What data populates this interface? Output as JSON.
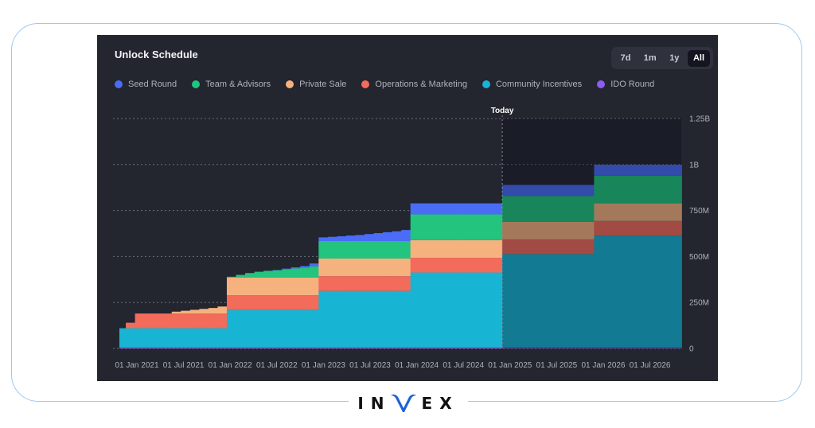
{
  "panel": {
    "title": "Unlock Schedule",
    "ranges": [
      "7d",
      "1m",
      "1y",
      "All"
    ],
    "active_range": "All"
  },
  "brand": {
    "logo_text": "INVEX"
  },
  "chart_data": {
    "type": "area",
    "subtype": "stacked-step",
    "title": "Unlock Schedule",
    "xlabel": "",
    "ylabel": "",
    "x_ticks": [
      "01 Jan 2021",
      "01 Jul 2021",
      "01 Jan 2022",
      "01 Jul 2022",
      "01 Jan 2023",
      "01 Jul 2023",
      "01 Jan 2024",
      "01 Jul 2024",
      "01 Jan 2025",
      "01 Jul 2025",
      "01 Jan 2026",
      "01 Jul 2026"
    ],
    "x_range": [
      2020.83,
      2026.95
    ],
    "y_ticks": [
      {
        "value": 0,
        "label": "0"
      },
      {
        "value": 250,
        "label": "250M"
      },
      {
        "value": 500,
        "label": "500M"
      },
      {
        "value": 750,
        "label": "750M"
      },
      {
        "value": 1000,
        "label": "1B"
      },
      {
        "value": 1250,
        "label": "1.25B"
      }
    ],
    "ylim": [
      0,
      1250
    ],
    "y_units": "millions of tokens",
    "today": {
      "label": "Today",
      "x": 2025.0
    },
    "legend_position": "top-left",
    "series": [
      {
        "name": "IDO Round",
        "color": "#8b5cf6",
        "segments": [
          [
            2020.83,
            2026.95,
            8
          ]
        ]
      },
      {
        "name": "Community Incentives",
        "color": "#18b4d4",
        "segments": [
          [
            2020.83,
            2021.5,
            102
          ],
          [
            2021.5,
            2022.0,
            102
          ],
          [
            2022.0,
            2022.5,
            201
          ],
          [
            2022.5,
            2023.0,
            201
          ],
          [
            2023.0,
            2023.5,
            305
          ],
          [
            2023.5,
            2024.0,
            305
          ],
          [
            2024.0,
            2024.5,
            405
          ],
          [
            2024.5,
            2025.0,
            405
          ],
          [
            2025.0,
            2025.5,
            505
          ],
          [
            2025.5,
            2026.0,
            505
          ],
          [
            2026.0,
            2026.95,
            605
          ]
        ]
      },
      {
        "name": "Operations & Marketing",
        "color": "#f26b5b",
        "segments": [
          [
            2020.9,
            2021.0,
            30
          ],
          [
            2021.0,
            2021.5,
            80
          ],
          [
            2021.5,
            2022.0,
            80
          ],
          [
            2022.0,
            2022.5,
            80
          ],
          [
            2022.5,
            2023.0,
            80
          ],
          [
            2023.0,
            2023.5,
            80
          ],
          [
            2023.5,
            2024.0,
            80
          ],
          [
            2024.0,
            2024.5,
            80
          ],
          [
            2024.5,
            2025.0,
            80
          ],
          [
            2025.0,
            2025.5,
            80
          ],
          [
            2025.5,
            2026.0,
            80
          ],
          [
            2026.0,
            2026.95,
            80
          ]
        ]
      },
      {
        "name": "Private Sale",
        "color": "#f5b27e",
        "segments": [
          [
            2021.4,
            2021.5,
            10
          ],
          [
            2021.5,
            2021.6,
            15
          ],
          [
            2021.6,
            2021.7,
            20
          ],
          [
            2021.7,
            2021.8,
            25
          ],
          [
            2021.8,
            2021.9,
            30
          ],
          [
            2021.9,
            2022.0,
            38
          ],
          [
            2022.0,
            2022.5,
            96
          ],
          [
            2022.5,
            2023.0,
            96
          ],
          [
            2023.0,
            2023.5,
            96
          ],
          [
            2023.5,
            2024.0,
            96
          ],
          [
            2024.0,
            2024.5,
            96
          ],
          [
            2024.5,
            2025.0,
            96
          ],
          [
            2025.0,
            2025.5,
            96
          ],
          [
            2025.5,
            2026.0,
            96
          ],
          [
            2026.0,
            2026.95,
            96
          ]
        ]
      },
      {
        "name": "Team & Advisors",
        "color": "#22c47e",
        "segments": [
          [
            2022.0,
            2022.1,
            5
          ],
          [
            2022.1,
            2022.2,
            15
          ],
          [
            2022.2,
            2022.3,
            25
          ],
          [
            2022.3,
            2022.4,
            32
          ],
          [
            2022.4,
            2022.5,
            37
          ],
          [
            2022.5,
            2022.6,
            40
          ],
          [
            2022.6,
            2022.7,
            45
          ],
          [
            2022.7,
            2022.8,
            50
          ],
          [
            2022.8,
            2022.9,
            55
          ],
          [
            2022.9,
            2023.0,
            62
          ],
          [
            2023.0,
            2023.5,
            95
          ],
          [
            2023.5,
            2024.0,
            95
          ],
          [
            2024.0,
            2024.5,
            140
          ],
          [
            2024.5,
            2025.0,
            140
          ],
          [
            2025.0,
            2025.5,
            140
          ],
          [
            2025.5,
            2026.0,
            140
          ],
          [
            2026.0,
            2026.95,
            150
          ]
        ]
      },
      {
        "name": "Seed Round",
        "color": "#4a6cf7",
        "segments": [
          [
            2022.5,
            2022.6,
            2
          ],
          [
            2022.6,
            2022.7,
            4
          ],
          [
            2022.7,
            2022.8,
            6
          ],
          [
            2022.8,
            2022.9,
            8
          ],
          [
            2022.9,
            2023.0,
            15
          ],
          [
            2023.0,
            2023.1,
            20
          ],
          [
            2023.1,
            2023.2,
            23
          ],
          [
            2023.2,
            2023.3,
            26
          ],
          [
            2023.3,
            2023.4,
            30
          ],
          [
            2023.4,
            2023.5,
            33
          ],
          [
            2023.5,
            2023.6,
            38
          ],
          [
            2023.6,
            2023.7,
            43
          ],
          [
            2023.7,
            2023.8,
            48
          ],
          [
            2023.8,
            2023.9,
            53
          ],
          [
            2023.9,
            2024.0,
            60
          ],
          [
            2024.0,
            2024.5,
            60
          ],
          [
            2024.5,
            2025.0,
            60
          ],
          [
            2025.0,
            2025.5,
            60
          ],
          [
            2025.5,
            2026.0,
            60
          ],
          [
            2026.0,
            2026.95,
            60
          ]
        ]
      }
    ]
  }
}
